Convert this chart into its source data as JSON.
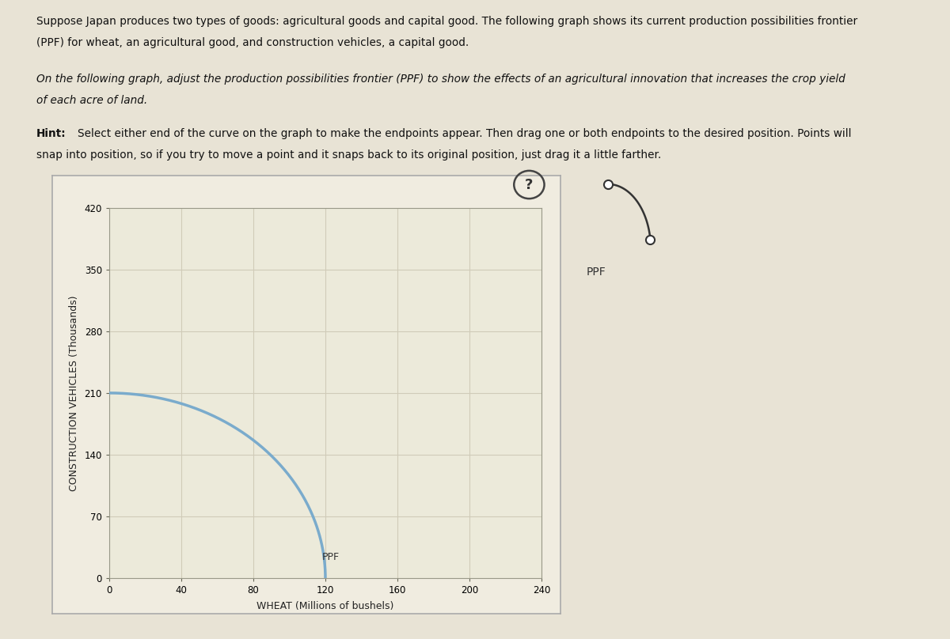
{
  "page_bg_color": "#e8e3d5",
  "graph_bg_color": "#f0ece0",
  "title_line1": "Suppose Japan produces two types of goods: agricultural goods and capital good. The following graph shows its current production possibilities frontier",
  "title_line2": "(PPF) for wheat, an agricultural good, and construction vehicles, a capital good.",
  "subtitle_line1": "On the following graph, adjust the production possibilities frontier (PPF) to show the effects of an agricultural innovation that increases the crop yield",
  "subtitle_line2": "of each acre of land.",
  "ylabel": "CONSTRUCTION VEHICLES (Thousands)",
  "xlabel": "WHEAT (Millions of bushels)",
  "yticks": [
    0,
    70,
    140,
    210,
    280,
    350,
    420
  ],
  "xticks": [
    0,
    40,
    80,
    120,
    160,
    200,
    240
  ],
  "xlim": [
    0,
    240
  ],
  "ylim": [
    0,
    420
  ],
  "ppf_x_end": 120,
  "ppf_y_end": 210,
  "ppf_color": "#7aabcc",
  "ppf_linewidth": 2.5,
  "grid_color": "#d0cbb8",
  "axis_bg": "#eceada",
  "legend_icon_color": "#333333",
  "legend_label": "PPF",
  "ppf_label": "PPF",
  "text_color": "#111111"
}
